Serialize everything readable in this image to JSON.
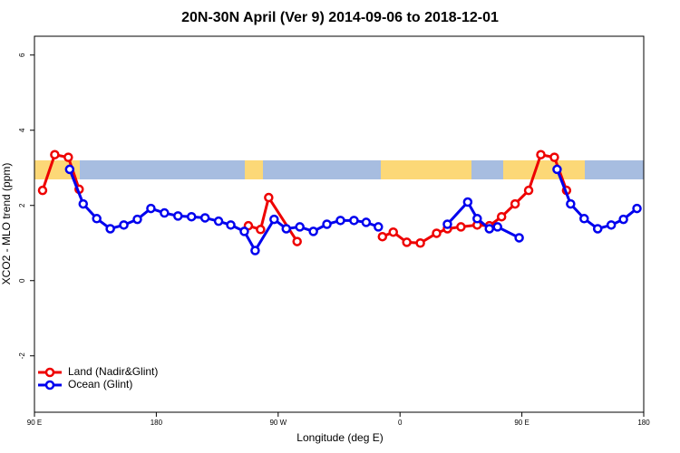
{
  "chart_data": {
    "type": "line",
    "title": "20N-30N April (Ver 9)   2014-09-06 to 2018-12-01",
    "xlabel": "Longitude (deg E)",
    "ylabel": "XCO2 - MLO trend (ppm)",
    "xlim": [
      90,
      540
    ],
    "ylim": [
      -3.5,
      6.5
    ],
    "xticks": [
      {
        "value": 90,
        "label": "90 E"
      },
      180,
      {
        "value": 270,
        "label": "90 W"
      },
      {
        "value": 360,
        "label": "0"
      },
      {
        "value": 450,
        "label": "90 E"
      },
      {
        "value": 540,
        "label": "180"
      }
    ],
    "yticks": [
      -2,
      0,
      2,
      4,
      6
    ],
    "legend": "bottomleft",
    "series": [
      {
        "name": "Land (Nadir&Glint)",
        "color": "#ee0000",
        "x": [
          96,
          105,
          115,
          123,
          null,
          248,
          257,
          263,
          284,
          null,
          347,
          355,
          365,
          375,
          387,
          395,
          405,
          417,
          426,
          435,
          445,
          455,
          464,
          474,
          483
        ],
        "values": [
          2.4,
          3.35,
          3.28,
          2.43,
          null,
          1.46,
          1.36,
          2.21,
          1.04,
          null,
          1.17,
          1.29,
          1.02,
          1.0,
          1.26,
          1.38,
          1.43,
          1.48,
          1.46,
          1.7,
          2.04,
          2.4,
          3.35,
          3.28,
          2.4
        ]
      },
      {
        "name": "Ocean (Glint)",
        "color": "#0000ee",
        "x": [
          116,
          126,
          136,
          146,
          156,
          166,
          176,
          186,
          196,
          206,
          216,
          226,
          235,
          245,
          253,
          267,
          276,
          286,
          296,
          306,
          316,
          326,
          335,
          344,
          null,
          395,
          410,
          417,
          426,
          432,
          448,
          null,
          476,
          486,
          496,
          506,
          516,
          525,
          535
        ],
        "values": [
          2.96,
          2.04,
          1.65,
          1.38,
          1.48,
          1.63,
          1.92,
          1.8,
          1.72,
          1.7,
          1.67,
          1.58,
          1.48,
          1.31,
          0.8,
          1.63,
          1.38,
          1.43,
          1.31,
          1.5,
          1.6,
          1.6,
          1.55,
          1.43,
          null,
          1.5,
          2.09,
          1.65,
          1.38,
          1.43,
          1.14,
          null,
          2.96,
          2.04,
          1.65,
          1.38,
          1.48,
          1.63,
          1.92
        ]
      }
    ]
  }
}
